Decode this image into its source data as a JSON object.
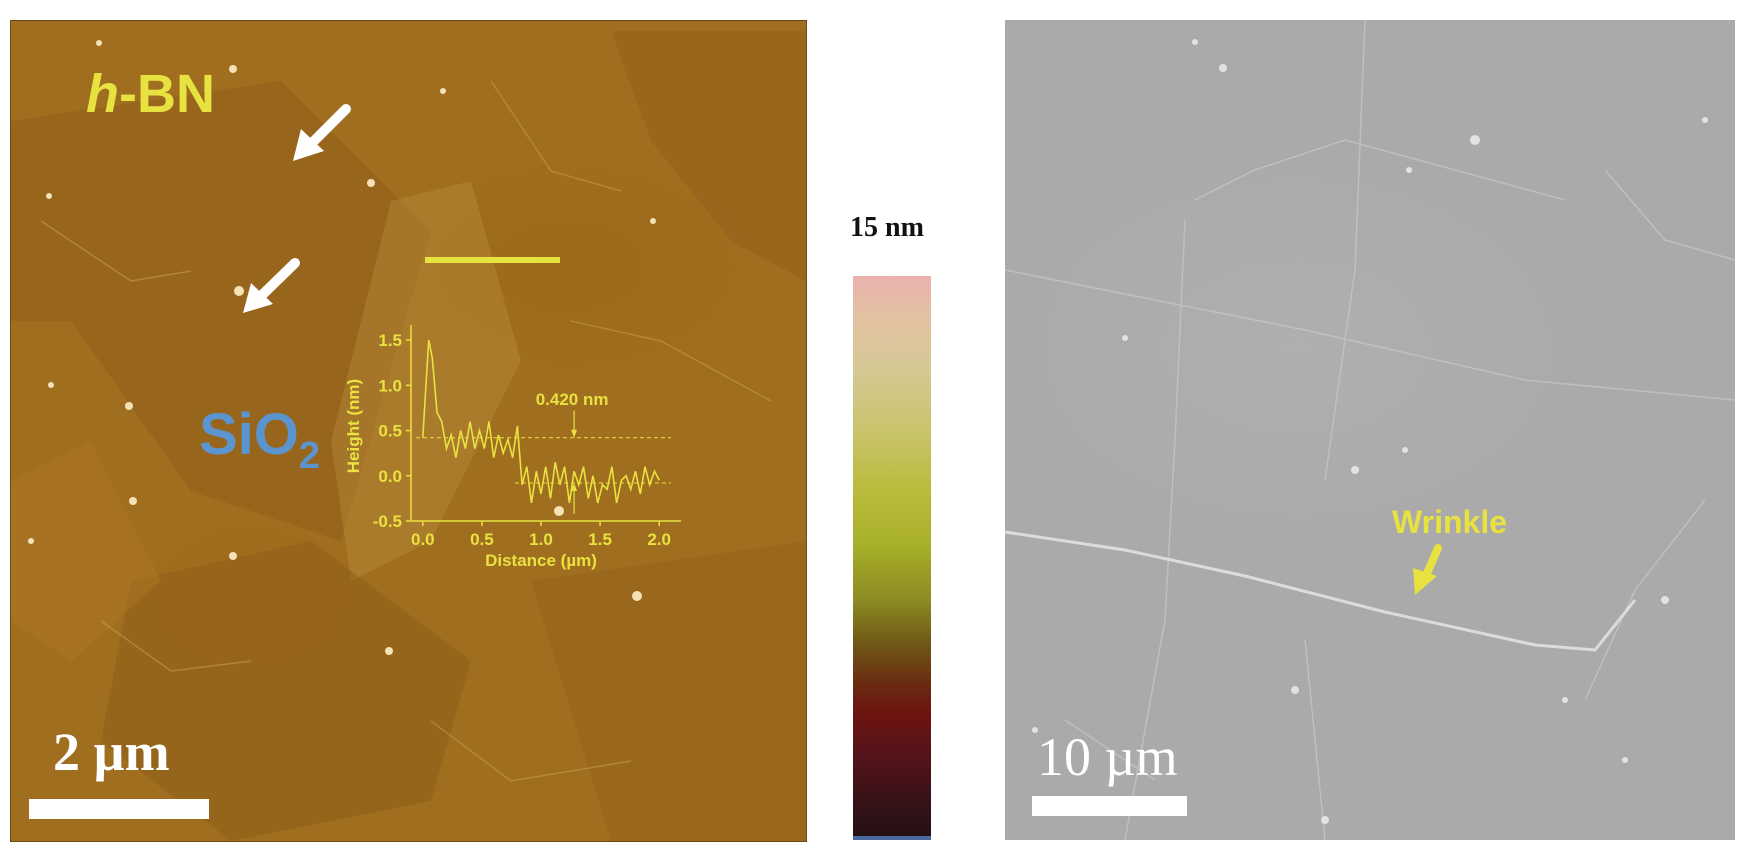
{
  "afm_panel": {
    "material_label_italic": "h",
    "material_label_rest": "-BN",
    "substrate_label_main": "SiO",
    "substrate_label_sub": "2",
    "scale_text": "2 µm",
    "arrow_count": 2
  },
  "colorbar": {
    "max_label": "15 nm"
  },
  "inset_profile": {
    "chart_data": {
      "type": "line",
      "xlabel": "Distance (µm)",
      "ylabel": "Height (nm)",
      "xlim": [
        -0.1,
        2.1
      ],
      "ylim": [
        -0.5,
        1.6
      ],
      "xticks": [
        "0.0",
        "0.5",
        "1.0",
        "1.5",
        "2.0"
      ],
      "yticks": [
        "-0.5",
        "0.0",
        "0.5",
        "1.0",
        "1.5"
      ],
      "annotation": "0.420 nm",
      "upper_reference": 0.42,
      "lower_reference": -0.08,
      "series": [
        {
          "x": [
            0.0,
            0.05,
            0.08,
            0.12,
            0.16,
            0.2,
            0.24,
            0.28,
            0.32,
            0.36,
            0.4,
            0.44,
            0.48,
            0.52,
            0.56,
            0.6,
            0.64,
            0.68,
            0.72,
            0.76,
            0.8,
            0.84,
            0.88,
            0.92,
            0.96,
            1.0,
            1.04,
            1.08,
            1.12,
            1.16,
            1.2,
            1.24,
            1.28,
            1.32,
            1.36,
            1.4,
            1.44,
            1.48,
            1.52,
            1.56,
            1.6,
            1.64,
            1.68,
            1.72,
            1.76,
            1.8,
            1.84,
            1.88,
            1.92,
            1.96,
            2.0
          ],
          "y": [
            0.42,
            1.5,
            1.3,
            0.7,
            0.6,
            0.3,
            0.45,
            0.2,
            0.5,
            0.3,
            0.6,
            0.3,
            0.5,
            0.3,
            0.6,
            0.2,
            0.45,
            0.25,
            0.4,
            0.2,
            0.55,
            -0.1,
            0.1,
            -0.3,
            0.05,
            -0.2,
            0.1,
            -0.25,
            0.15,
            -0.1,
            0.1,
            -0.3,
            0.05,
            -0.1,
            0.1,
            -0.25,
            0.0,
            -0.3,
            -0.1,
            -0.15,
            0.1,
            -0.3,
            -0.05,
            0.0,
            -0.15,
            0.05,
            -0.2,
            0.1,
            -0.1,
            0.05,
            -0.05
          ]
        }
      ]
    }
  },
  "sem_panel": {
    "annotation_label": "Wrinkle",
    "scale_text": "10 µm"
  },
  "colors": {
    "label_yellow": "#e8e240",
    "substrate_blue": "#5b95cf"
  }
}
